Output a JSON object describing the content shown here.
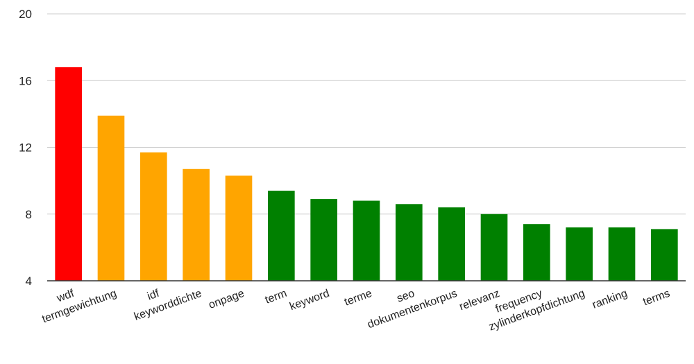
{
  "chart_data": {
    "type": "bar",
    "title": "",
    "xlabel": "",
    "ylabel": "",
    "ylim": [
      4,
      20
    ],
    "yticks": [
      4,
      8,
      12,
      16,
      20
    ],
    "grid": true,
    "legend": "none",
    "categories": [
      "wdf",
      "termgewichtung",
      "idf",
      "keyworddichte",
      "onpage",
      "term",
      "keyword",
      "terme",
      "seo",
      "dokumentenkorpus",
      "relevanz",
      "frequency",
      "zylinderkopfdichtung",
      "ranking",
      "terms"
    ],
    "values": [
      16.8,
      13.9,
      11.7,
      10.7,
      10.3,
      9.4,
      8.9,
      8.8,
      8.6,
      8.4,
      8.0,
      7.4,
      7.2,
      7.2,
      7.1
    ],
    "bar_colors": [
      "#ff0000",
      "#ffa500",
      "#ffa500",
      "#ffa500",
      "#ffa500",
      "#008000",
      "#008000",
      "#008000",
      "#008000",
      "#008000",
      "#008000",
      "#008000",
      "#008000",
      "#008000",
      "#008000"
    ],
    "colors": {
      "red": "#ff0000",
      "orange": "#ffa500",
      "green": "#008000",
      "grid": "#cccccc",
      "axis": "#333333"
    }
  }
}
